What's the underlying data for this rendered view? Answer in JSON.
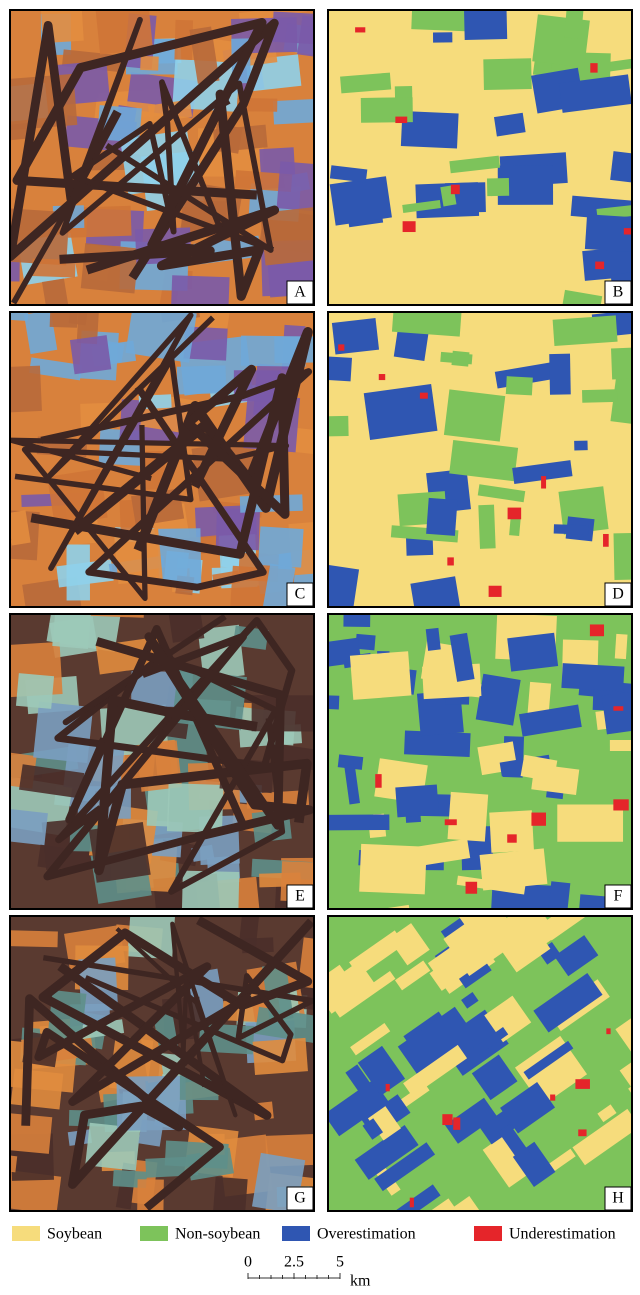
{
  "panels": [
    {
      "label": "A"
    },
    {
      "label": "B"
    },
    {
      "label": "C"
    },
    {
      "label": "D"
    },
    {
      "label": "E"
    },
    {
      "label": "F"
    },
    {
      "label": "G"
    },
    {
      "label": "H"
    }
  ],
  "legend": [
    {
      "label": "Soybean",
      "color": "#f6dc7c"
    },
    {
      "label": "Non-soybean",
      "color": "#7dc35b"
    },
    {
      "label": "Overestimation",
      "color": "#2f56b2"
    },
    {
      "label": "Underestimation",
      "color": "#e5252a"
    }
  ],
  "scale_bar": {
    "ticks": [
      0,
      2.5,
      5
    ],
    "unit": "km"
  }
}
